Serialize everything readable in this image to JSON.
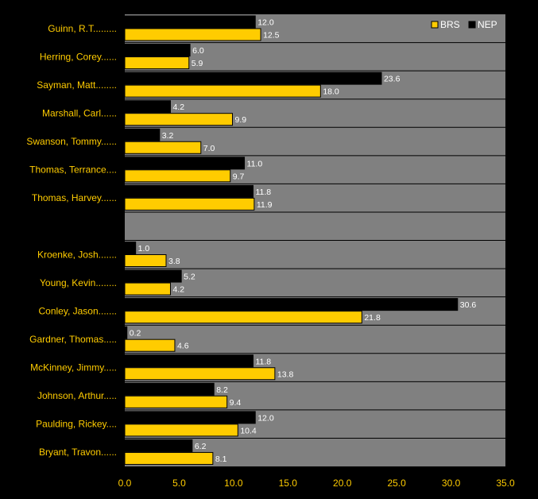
{
  "chart_data": {
    "type": "bar",
    "orientation": "horizontal",
    "title": "",
    "xlabel": "",
    "ylabel": "",
    "xlim": [
      0,
      35
    ],
    "x_ticks": [
      "0.0",
      "5.0",
      "10.0",
      "15.0",
      "20.0",
      "25.0",
      "30.0",
      "35.0"
    ],
    "grid": "horizontal separators between categories",
    "legend_position": "top-right",
    "categories": [
      "Guinn, R.T.........",
      "Herring, Corey......",
      "Sayman, Matt........",
      "Marshall, Carl......",
      "Swanson, Tommy......",
      "Thomas, Terrance....",
      "Thomas, Harvey......",
      "",
      "Kroenke, Josh.......",
      "Young, Kevin........",
      "Conley, Jason.......",
      "Gardner, Thomas.....",
      "McKinney, Jimmy.....",
      "Johnson, Arthur.....",
      "Paulding, Rickey....",
      "Bryant, Travon......"
    ],
    "series": [
      {
        "name": "NEP",
        "color": "#000000",
        "values": [
          12.0,
          6.0,
          23.6,
          4.2,
          3.2,
          11.0,
          11.8,
          null,
          1.0,
          5.2,
          30.6,
          0.2,
          11.8,
          8.2,
          12.0,
          6.2
        ],
        "labels": [
          "12.0",
          "6.0",
          "23.6",
          "4.2",
          "3.2",
          "11.0",
          "11.8",
          "",
          "1.0",
          "5.2",
          "30.6",
          "0.2",
          "11.8",
          "8.2",
          "12.0",
          "6.2"
        ]
      },
      {
        "name": "BRS",
        "color": "#FFCC00",
        "values": [
          12.5,
          5.9,
          18.0,
          9.9,
          7.0,
          9.7,
          11.9,
          null,
          3.8,
          4.2,
          21.8,
          4.6,
          13.8,
          9.4,
          10.4,
          8.1
        ],
        "labels": [
          "12.5",
          "5.9",
          "18.0",
          "9.9",
          "7.0",
          "9.7",
          "11.9",
          "",
          "3.8",
          "4.2",
          "21.8",
          "4.6",
          "13.8",
          "9.4",
          "10.4",
          "8.1"
        ]
      }
    ],
    "legend_order": [
      "BRS",
      "NEP"
    ],
    "colors": {
      "background": "#000000",
      "plot_area": "#808080",
      "category_label": "#FFCC00",
      "tick_label": "#FFCC00",
      "data_label": "#FFFFFF"
    }
  }
}
